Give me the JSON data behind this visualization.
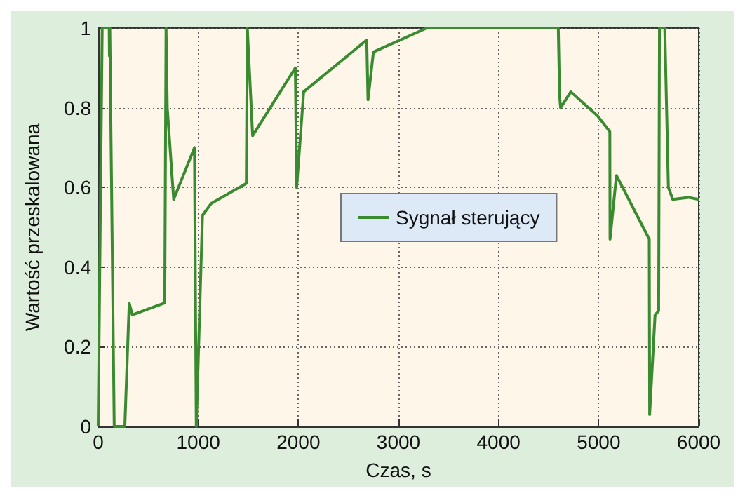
{
  "chart_data": {
    "type": "line",
    "xlabel": "Czas, s",
    "ylabel": "Wartość przeskalowana",
    "x": [
      0,
      40,
      110,
      112,
      116,
      160,
      266,
      310,
      341,
      665,
      678,
      690,
      754,
      962,
      980,
      1042,
      1130,
      1480,
      1490,
      1543,
      1970,
      1983,
      2053,
      2683,
      2696,
      2750,
      3282,
      4597,
      4610,
      4620,
      4722,
      4988,
      5112,
      5114,
      5178,
      5506,
      5510,
      5564,
      5600,
      5608,
      5661,
      5697,
      5741,
      5896,
      6000
    ],
    "series": [
      {
        "name": "Sygnał sterujący",
        "color": "#3a8a30",
        "values": [
          0,
          1,
          1,
          0.93,
          1,
          0,
          0,
          0.31,
          0.28,
          0.31,
          1,
          0.8,
          0.57,
          0.7,
          0,
          0.53,
          0.56,
          0.61,
          1,
          0.73,
          0.9,
          0.6,
          0.84,
          0.97,
          0.82,
          0.94,
          1,
          1,
          0.83,
          0.8,
          0.84,
          0.78,
          0.74,
          0.47,
          0.63,
          0.47,
          0.03,
          0.28,
          0.29,
          1,
          1,
          0.6,
          0.57,
          0.575,
          0.57
        ]
      }
    ],
    "xlim": [
      0,
      6000
    ],
    "xticks": [
      0,
      1000,
      2000,
      3000,
      4000,
      5000,
      6000
    ],
    "ylim": [
      0,
      1
    ],
    "yticks": [
      0,
      0.2,
      0.4,
      0.6,
      0.8,
      1
    ],
    "grid": true,
    "legend": "right",
    "marker": "none",
    "line_style": "solid"
  }
}
